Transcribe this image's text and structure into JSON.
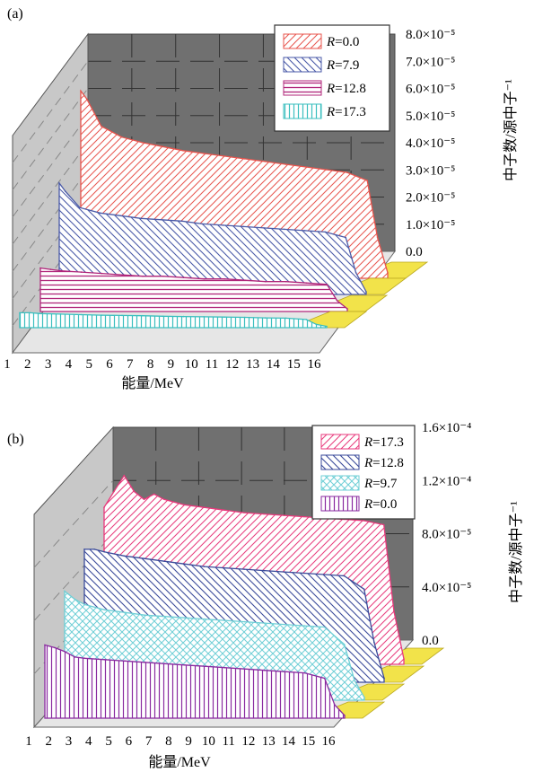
{
  "chart_data": [
    {
      "type": "area",
      "panel_label": "(a)",
      "xlabel": "能量/MeV",
      "zlabel": "中子数/源中子⁻¹",
      "x_ticks": [
        "1",
        "2",
        "3",
        "4",
        "5",
        "6",
        "7",
        "8",
        "9",
        "10",
        "11",
        "12",
        "13",
        "14",
        "15",
        "16"
      ],
      "z_ticks": [
        "0.0",
        "1.0×10⁻⁵",
        "2.0×10⁻⁵",
        "3.0×10⁻⁵",
        "4.0×10⁻⁵",
        "5.0×10⁻⁵",
        "6.0×10⁻⁵",
        "7.0×10⁻⁵",
        "8.0×10⁻⁵"
      ],
      "zlim": [
        0,
        8e-05
      ],
      "legend_position": "top-right",
      "series": [
        {
          "name": "R=0.0",
          "label_var": "R",
          "label_val": "=0.0",
          "color": "#e8554e",
          "x": [
            1,
            1.3,
            2,
            3,
            4,
            5,
            6,
            7,
            8,
            9,
            10,
            11,
            12,
            13,
            14,
            15,
            15.5,
            16
          ],
          "values": [
            6.9e-05,
            6.6e-05,
            5.6e-05,
            5.2e-05,
            5e-05,
            4.85e-05,
            4.7e-05,
            4.6e-05,
            4.5e-05,
            4.4e-05,
            4.3e-05,
            4.2e-05,
            4.1e-05,
            4e-05,
            3.9e-05,
            3.6e-05,
            1.5e-05,
            2e-06
          ]
        },
        {
          "name": "R=7.9",
          "label_var": "R",
          "label_val": "=7.9",
          "color": "#4a5aa8",
          "x": [
            1,
            1.3,
            2,
            3,
            4,
            5,
            6,
            7,
            8,
            9,
            10,
            11,
            12,
            13,
            14,
            15,
            15.5,
            16
          ],
          "values": [
            4.1e-05,
            3.8e-05,
            3.2e-05,
            3e-05,
            2.9e-05,
            2.8e-05,
            2.75e-05,
            2.7e-05,
            2.6e-05,
            2.55e-05,
            2.5e-05,
            2.45e-05,
            2.4e-05,
            2.35e-05,
            2.3e-05,
            2.1e-05,
            8e-06,
            1e-06
          ]
        },
        {
          "name": "R=12.8",
          "label_var": "R",
          "label_val": "=12.8",
          "color": "#b0257a",
          "x": [
            1,
            1.5,
            2,
            3,
            4,
            5,
            6,
            7,
            8,
            9,
            10,
            11,
            12,
            13,
            14,
            15,
            15.5,
            16
          ],
          "values": [
            1.6e-05,
            1.55e-05,
            1.5e-05,
            1.45e-05,
            1.4e-05,
            1.35e-05,
            1.3e-05,
            1.3e-05,
            1.25e-05,
            1.2e-05,
            1.2e-05,
            1.15e-05,
            1.1e-05,
            1.1e-05,
            1.05e-05,
            1e-05,
            4e-06,
            1e-06
          ]
        },
        {
          "name": "R=17.3",
          "label_var": "R",
          "label_val": "=17.3",
          "color": "#3bbfbf",
          "x": [
            1,
            1.5,
            2,
            3,
            4,
            5,
            6,
            7,
            8,
            9,
            10,
            11,
            12,
            13,
            14,
            15,
            15.5,
            16
          ],
          "values": [
            5.5e-06,
            5.5e-06,
            5.2e-06,
            5e-06,
            4.8e-06,
            4.6e-06,
            4.5e-06,
            4.4e-06,
            4.2e-06,
            4.1e-06,
            4e-06,
            3.9e-06,
            3.8e-06,
            3.6e-06,
            3.5e-06,
            3e-06,
            1.2e-06,
            5e-07
          ]
        }
      ]
    },
    {
      "type": "area",
      "panel_label": "(b)",
      "xlabel": "能量/MeV",
      "zlabel": "中子数/源中子⁻¹",
      "x_ticks": [
        "1",
        "2",
        "3",
        "4",
        "5",
        "6",
        "7",
        "8",
        "9",
        "10",
        "11",
        "12",
        "13",
        "14",
        "15",
        "16"
      ],
      "z_ticks": [
        "0.0",
        "4.0×10⁻⁵",
        "8.0×10⁻⁵",
        "1.2×10⁻⁴",
        "1.6×10⁻⁴"
      ],
      "zlim": [
        0,
        0.00016
      ],
      "legend_position": "top-right",
      "series": [
        {
          "name": "R=17.3",
          "label_var": "R",
          "label_val": "=17.3",
          "color": "#e83a7c",
          "x": [
            1,
            1.5,
            2,
            2.5,
            3,
            3.5,
            4,
            5,
            6,
            7,
            8,
            9,
            10,
            11,
            12,
            13,
            14,
            15,
            15.5,
            16
          ],
          "values": [
            0.000118,
            0.00013,
            0.000142,
            0.00013,
            0.000124,
            0.000128,
            0.000124,
            0.00012,
            0.000118,
            0.000116,
            0.000114,
            0.000113,
            0.000112,
            0.000111,
            0.00011,
            0.000109,
            0.000108,
            0.000105,
            4e-05,
            4e-06
          ]
        },
        {
          "name": "R=12.8",
          "label_var": "R",
          "label_val": "=12.8",
          "color": "#3a4a9a",
          "x": [
            1,
            1.5,
            2,
            3,
            4,
            5,
            6,
            7,
            8,
            9,
            10,
            11,
            12,
            13,
            14,
            15,
            15.5,
            16
          ],
          "values": [
            0.0001,
            0.0001,
            9.8e-05,
            9.5e-05,
            9.3e-05,
            9.1e-05,
            8.9e-05,
            8.7e-05,
            8.6e-05,
            8.5e-05,
            8.4e-05,
            8.3e-05,
            8.2e-05,
            8.1e-05,
            8e-05,
            7e-05,
            3e-05,
            3e-06
          ]
        },
        {
          "name": "R=9.7",
          "label_var": "R",
          "label_val": "=9.7",
          "color": "#6fcfd6",
          "x": [
            1,
            1.5,
            2,
            3,
            4,
            5,
            6,
            7,
            8,
            9,
            10,
            11,
            12,
            13,
            14,
            15,
            15.5,
            16
          ],
          "values": [
            8.2e-05,
            7.6e-05,
            7.2e-05,
            6.8e-05,
            6.6e-05,
            6.4e-05,
            6.3e-05,
            6.2e-05,
            6.1e-05,
            6e-05,
            5.9e-05,
            5.8e-05,
            5.7e-05,
            5.6e-05,
            5.5e-05,
            4.2e-05,
            1.5e-05,
            2e-06
          ]
        },
        {
          "name": "R=0.0",
          "label_var": "R",
          "label_val": "=0.0",
          "color": "#8a2aa0",
          "x": [
            1,
            1.5,
            2,
            2.5,
            3,
            4,
            5,
            6,
            7,
            8,
            9,
            10,
            11,
            12,
            13,
            14,
            15,
            15.5,
            16
          ],
          "values": [
            5.5e-05,
            5.3e-05,
            5e-05,
            4.6e-05,
            4.5e-05,
            4.4e-05,
            4.3e-05,
            4.2e-05,
            4.1e-05,
            4e-05,
            3.9e-05,
            3.8e-05,
            3.7e-05,
            3.6e-05,
            3.5e-05,
            3.4e-05,
            3e-05,
            1e-05,
            2e-06
          ]
        }
      ]
    }
  ]
}
